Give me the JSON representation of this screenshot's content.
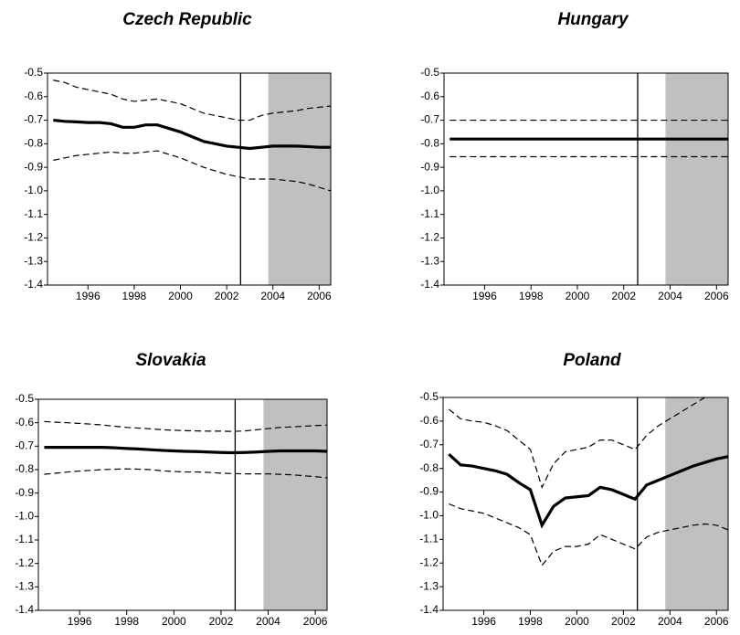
{
  "chart_data": [
    {
      "type": "line",
      "title": "Czech Republic",
      "x": [
        1994.5,
        1995,
        1995.5,
        1996,
        1996.5,
        1997,
        1997.5,
        1998,
        1998.5,
        1999,
        1999.5,
        2000,
        2000.5,
        2001,
        2001.5,
        2002,
        2002.5,
        2003,
        2003.5,
        2004,
        2004.5,
        2005,
        2005.5,
        2006,
        2006.5
      ],
      "series": [
        {
          "color": "#000000",
          "style": "solid",
          "values": [
            -0.7,
            -0.705,
            -0.707,
            -0.71,
            -0.71,
            -0.715,
            -0.73,
            -0.73,
            -0.72,
            -0.72,
            -0.735,
            -0.75,
            -0.77,
            -0.79,
            -0.8,
            -0.81,
            -0.815,
            -0.82,
            -0.815,
            -0.81,
            -0.81,
            -0.81,
            -0.812,
            -0.815,
            -0.815
          ]
        },
        {
          "color": "#000000",
          "style": "dashed",
          "values": [
            -0.53,
            -0.54,
            -0.56,
            -0.57,
            -0.58,
            -0.59,
            -0.61,
            -0.62,
            -0.615,
            -0.61,
            -0.62,
            -0.63,
            -0.65,
            -0.67,
            -0.68,
            -0.69,
            -0.7,
            -0.7,
            -0.68,
            -0.67,
            -0.665,
            -0.66,
            -0.65,
            -0.645,
            -0.64
          ]
        },
        {
          "color": "#000000",
          "style": "dashed",
          "values": [
            -0.87,
            -0.86,
            -0.85,
            -0.845,
            -0.84,
            -0.835,
            -0.84,
            -0.84,
            -0.835,
            -0.83,
            -0.845,
            -0.86,
            -0.88,
            -0.9,
            -0.915,
            -0.93,
            -0.94,
            -0.95,
            -0.95,
            -0.95,
            -0.955,
            -0.96,
            -0.97,
            -0.985,
            -1.0
          ]
        }
      ],
      "xlim": [
        1994.25,
        2006.5
      ],
      "xticks": [
        1996,
        1998,
        2000,
        2002,
        2004,
        2006
      ],
      "ylim": [
        -1.4,
        -0.5
      ],
      "yticks": [
        -0.5,
        -0.6,
        -0.7,
        -0.8,
        -0.9,
        {
          "value": -1,
          "label": "-1.0"
        },
        -1.1,
        -1.2,
        -1.3,
        -1.4
      ],
      "vline_x": 2002.6,
      "shaded_xrange": [
        2003.8,
        2006.5
      ],
      "shade_color": "#c0c0c0"
    },
    {
      "type": "line",
      "title": "Hungary",
      "x": [
        1994.5,
        1995,
        1995.5,
        1996,
        1996.5,
        1997,
        1997.5,
        1998,
        1998.5,
        1999,
        1999.5,
        2000,
        2000.5,
        2001,
        2001.5,
        2002,
        2002.5,
        2003,
        2003.5,
        2004,
        2004.5,
        2005,
        2005.5,
        2006,
        2006.5
      ],
      "series": [
        {
          "color": "#000000",
          "style": "solid",
          "values": [
            -0.78,
            -0.78,
            -0.78,
            -0.78,
            -0.78,
            -0.78,
            -0.78,
            -0.78,
            -0.78,
            -0.78,
            -0.78,
            -0.78,
            -0.78,
            -0.78,
            -0.78,
            -0.78,
            -0.78,
            -0.78,
            -0.78,
            -0.78,
            -0.78,
            -0.78,
            -0.78,
            -0.78,
            -0.78
          ]
        },
        {
          "color": "#000000",
          "style": "dashed",
          "values": [
            -0.7,
            -0.7,
            -0.7,
            -0.7,
            -0.7,
            -0.7,
            -0.7,
            -0.7,
            -0.7,
            -0.7,
            -0.7,
            -0.7,
            -0.7,
            -0.7,
            -0.7,
            -0.7,
            -0.7,
            -0.7,
            -0.7,
            -0.7,
            -0.7,
            -0.7,
            -0.7,
            -0.7,
            -0.7
          ]
        },
        {
          "color": "#000000",
          "style": "dashed",
          "values": [
            -0.855,
            -0.855,
            -0.855,
            -0.855,
            -0.855,
            -0.855,
            -0.855,
            -0.855,
            -0.855,
            -0.855,
            -0.855,
            -0.855,
            -0.855,
            -0.855,
            -0.855,
            -0.855,
            -0.855,
            -0.855,
            -0.855,
            -0.855,
            -0.855,
            -0.855,
            -0.855,
            -0.855,
            -0.855
          ]
        }
      ],
      "xlim": [
        1994.25,
        2006.5
      ],
      "xticks": [
        1996,
        1998,
        2000,
        2002,
        2004,
        2006
      ],
      "ylim": [
        -1.4,
        -0.5
      ],
      "yticks": [
        -0.5,
        -0.6,
        -0.7,
        -0.8,
        -0.9,
        {
          "value": -1,
          "label": "-1.0"
        },
        -1.1,
        -1.2,
        -1.3,
        -1.4
      ],
      "vline_x": 2002.6,
      "shaded_xrange": [
        2003.8,
        2006.5
      ],
      "shade_color": "#c0c0c0"
    },
    {
      "type": "line",
      "title": "Slovakia",
      "x": [
        1994.5,
        1995,
        1995.5,
        1996,
        1996.5,
        1997,
        1997.5,
        1998,
        1998.5,
        1999,
        1999.5,
        2000,
        2000.5,
        2001,
        2001.5,
        2002,
        2002.5,
        2003,
        2003.5,
        2004,
        2004.5,
        2005,
        2005.5,
        2006,
        2006.5
      ],
      "series": [
        {
          "color": "#000000",
          "style": "solid",
          "values": [
            -0.705,
            -0.705,
            -0.705,
            -0.705,
            -0.705,
            -0.705,
            -0.707,
            -0.71,
            -0.712,
            -0.715,
            -0.718,
            -0.72,
            -0.722,
            -0.723,
            -0.725,
            -0.727,
            -0.728,
            -0.727,
            -0.725,
            -0.722,
            -0.72,
            -0.72,
            -0.72,
            -0.72,
            -0.722
          ]
        },
        {
          "color": "#000000",
          "style": "dashed",
          "values": [
            -0.595,
            -0.598,
            -0.6,
            -0.603,
            -0.606,
            -0.61,
            -0.615,
            -0.62,
            -0.623,
            -0.626,
            -0.63,
            -0.632,
            -0.634,
            -0.635,
            -0.636,
            -0.636,
            -0.637,
            -0.635,
            -0.63,
            -0.625,
            -0.62,
            -0.618,
            -0.615,
            -0.612,
            -0.61
          ]
        },
        {
          "color": "#000000",
          "style": "dashed",
          "values": [
            -0.82,
            -0.815,
            -0.81,
            -0.806,
            -0.803,
            -0.8,
            -0.798,
            -0.797,
            -0.798,
            -0.8,
            -0.805,
            -0.808,
            -0.81,
            -0.81,
            -0.812,
            -0.815,
            -0.817,
            -0.818,
            -0.818,
            -0.818,
            -0.82,
            -0.822,
            -0.826,
            -0.83,
            -0.835
          ]
        }
      ],
      "xlim": [
        1994.25,
        2006.5
      ],
      "xticks": [
        1996,
        1998,
        2000,
        2002,
        2004,
        2006
      ],
      "ylim": [
        -1.4,
        -0.5
      ],
      "yticks": [
        -0.5,
        -0.6,
        -0.7,
        -0.8,
        -0.9,
        {
          "value": -1,
          "label": "-1.0"
        },
        -1.1,
        -1.2,
        -1.3,
        -1.4
      ],
      "vline_x": 2002.6,
      "shaded_xrange": [
        2003.8,
        2006.5
      ],
      "shade_color": "#c0c0c0"
    },
    {
      "type": "line",
      "title": "Poland",
      "x": [
        1994.5,
        1995,
        1995.5,
        1996,
        1996.5,
        1997,
        1997.5,
        1998,
        1998.5,
        1999,
        1999.5,
        2000,
        2000.5,
        2001,
        2001.5,
        2002,
        2002.5,
        2003,
        2003.5,
        2004,
        2004.5,
        2005,
        2005.5,
        2006,
        2006.5
      ],
      "series": [
        {
          "color": "#000000",
          "style": "solid",
          "values": [
            -0.74,
            -0.785,
            -0.79,
            -0.8,
            -0.81,
            -0.825,
            -0.86,
            -0.89,
            -1.04,
            -0.96,
            -0.925,
            -0.92,
            -0.915,
            -0.88,
            -0.89,
            -0.91,
            -0.93,
            -0.87,
            -0.85,
            -0.83,
            -0.81,
            -0.79,
            -0.775,
            -0.76,
            -0.75
          ]
        },
        {
          "color": "#000000",
          "style": "dashed",
          "values": [
            -0.55,
            -0.59,
            -0.6,
            -0.605,
            -0.62,
            -0.64,
            -0.68,
            -0.72,
            -0.88,
            -0.78,
            -0.73,
            -0.72,
            -0.71,
            -0.68,
            -0.68,
            -0.7,
            -0.72,
            -0.66,
            -0.62,
            -0.59,
            -0.56,
            -0.53,
            -0.5,
            -0.48,
            -0.47
          ]
        },
        {
          "color": "#000000",
          "style": "dashed",
          "values": [
            -0.95,
            -0.97,
            -0.98,
            -0.99,
            -1.01,
            -1.03,
            -1.05,
            -1.08,
            -1.21,
            -1.15,
            -1.13,
            -1.13,
            -1.12,
            -1.08,
            -1.1,
            -1.12,
            -1.14,
            -1.09,
            -1.07,
            -1.06,
            -1.05,
            -1.04,
            -1.035,
            -1.04,
            -1.06
          ]
        }
      ],
      "xlim": [
        1994.25,
        2006.5
      ],
      "xticks": [
        1996,
        1998,
        2000,
        2002,
        2004,
        2006
      ],
      "ylim": [
        -1.4,
        -0.5
      ],
      "yticks": [
        -0.5,
        -0.6,
        -0.7,
        -0.8,
        -0.9,
        {
          "value": -1,
          "label": "-1.0"
        },
        -1.1,
        -1.2,
        -1.3,
        -1.4
      ],
      "vline_x": 2002.6,
      "shaded_xrange": [
        2003.8,
        2006.5
      ],
      "shade_color": "#c0c0c0"
    }
  ]
}
